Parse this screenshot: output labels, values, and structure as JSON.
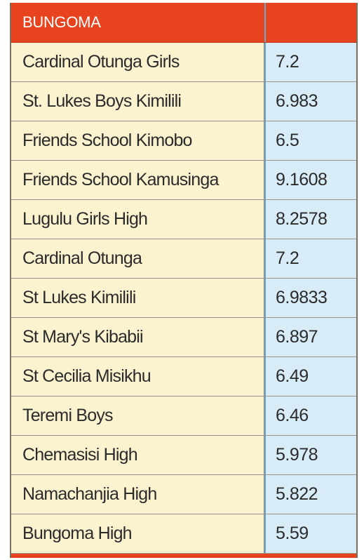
{
  "table": {
    "region": "BUNGOMA",
    "rows": [
      {
        "school": "Cardinal Otunga Girls",
        "score": "7.2"
      },
      {
        "school": "St. Lukes Boys Kimilili",
        "score": "6.983"
      },
      {
        "school": "Friends School Kimobo",
        "score": "6.5"
      },
      {
        "school": "Friends School Kamusinga",
        "score": "9.1608"
      },
      {
        "school": "Lugulu Girls High",
        "score": "8.2578"
      },
      {
        "school": "Cardinal Otunga",
        "score": "7.2"
      },
      {
        "school": "St Lukes Kimilili",
        "score": "6.9833"
      },
      {
        "school": "St Mary's Kibabii",
        "score": "6.897"
      },
      {
        "school": "St Cecilia Misikhu",
        "score": "6.49"
      },
      {
        "school": "Teremi Boys",
        "score": "6.46"
      },
      {
        "school": "Chemasisi High",
        "score": "5.978"
      },
      {
        "school": "Namachanjia High",
        "score": "5.822"
      },
      {
        "school": "Bungoma High",
        "score": "5.59"
      }
    ]
  },
  "colors": {
    "header_bg": "#e8431f",
    "name_cell_bg": "#fbf3cf",
    "score_cell_bg": "#d8ecf8"
  }
}
